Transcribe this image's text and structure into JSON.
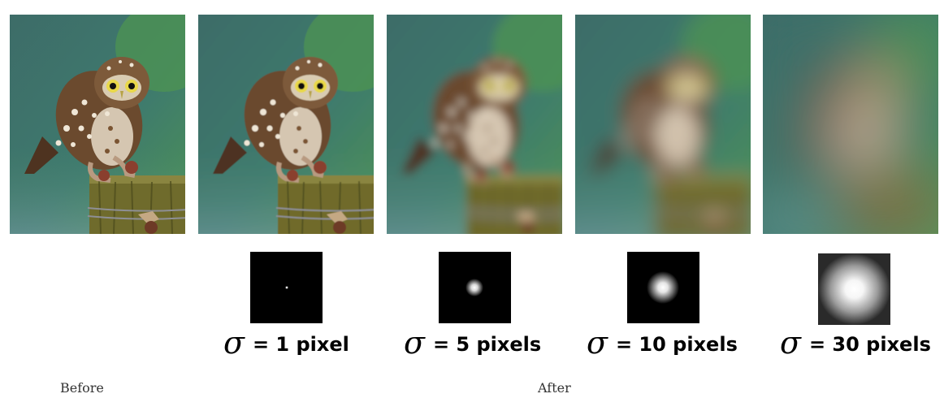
{
  "panels": [
    {
      "id": "original",
      "blur": 0
    },
    {
      "id": "sigma-1",
      "blur": 1,
      "kernel": {
        "symbol": "σ",
        "value_text": "= 1 pixel"
      }
    },
    {
      "id": "sigma-5",
      "blur": 5,
      "kernel": {
        "symbol": "σ",
        "value_text": "= 5 pixels"
      }
    },
    {
      "id": "sigma-10",
      "blur": 10,
      "kernel": {
        "symbol": "σ",
        "value_text": "= 10 pixels"
      }
    },
    {
      "id": "sigma-30",
      "blur": 30,
      "kernel": {
        "symbol": "σ",
        "value_text": "= 30 pixels"
      }
    }
  ],
  "captions": {
    "before": "Before",
    "after": "After"
  },
  "colors": {
    "background_top": "#3d6a67",
    "background_green": "#4f9650",
    "post": "#6f6b2c",
    "owl_body": "#6b4a2e",
    "kernel_bg": "#000000",
    "kernel_glow": "#ffffff"
  }
}
